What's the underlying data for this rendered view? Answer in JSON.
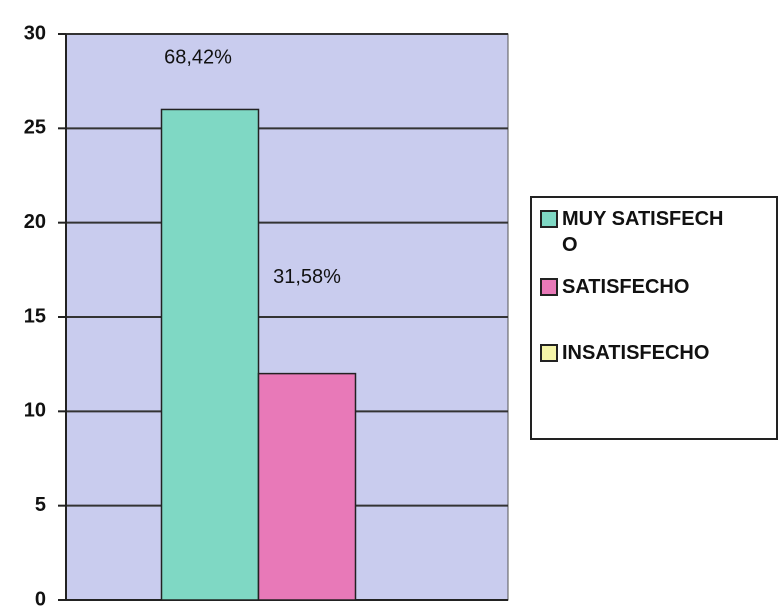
{
  "chart_data": {
    "type": "bar",
    "categories": [
      null
    ],
    "series": [
      {
        "name": "MUY SATISFECHO",
        "color": "#7fd8c4",
        "values": [
          26
        ],
        "value_labels": [
          "68,42%"
        ]
      },
      {
        "name": "SATISFECHO",
        "color": "#e879b8",
        "values": [
          12
        ],
        "value_labels": [
          "31,58%"
        ]
      },
      {
        "name": "INSATISFECHO",
        "color": "#f4f4a8",
        "values": [
          0
        ]
      }
    ],
    "ylim": [
      0,
      30
    ],
    "yticks": [
      0,
      5,
      10,
      15,
      20,
      25,
      30
    ],
    "grid": true,
    "legend": "right"
  }
}
